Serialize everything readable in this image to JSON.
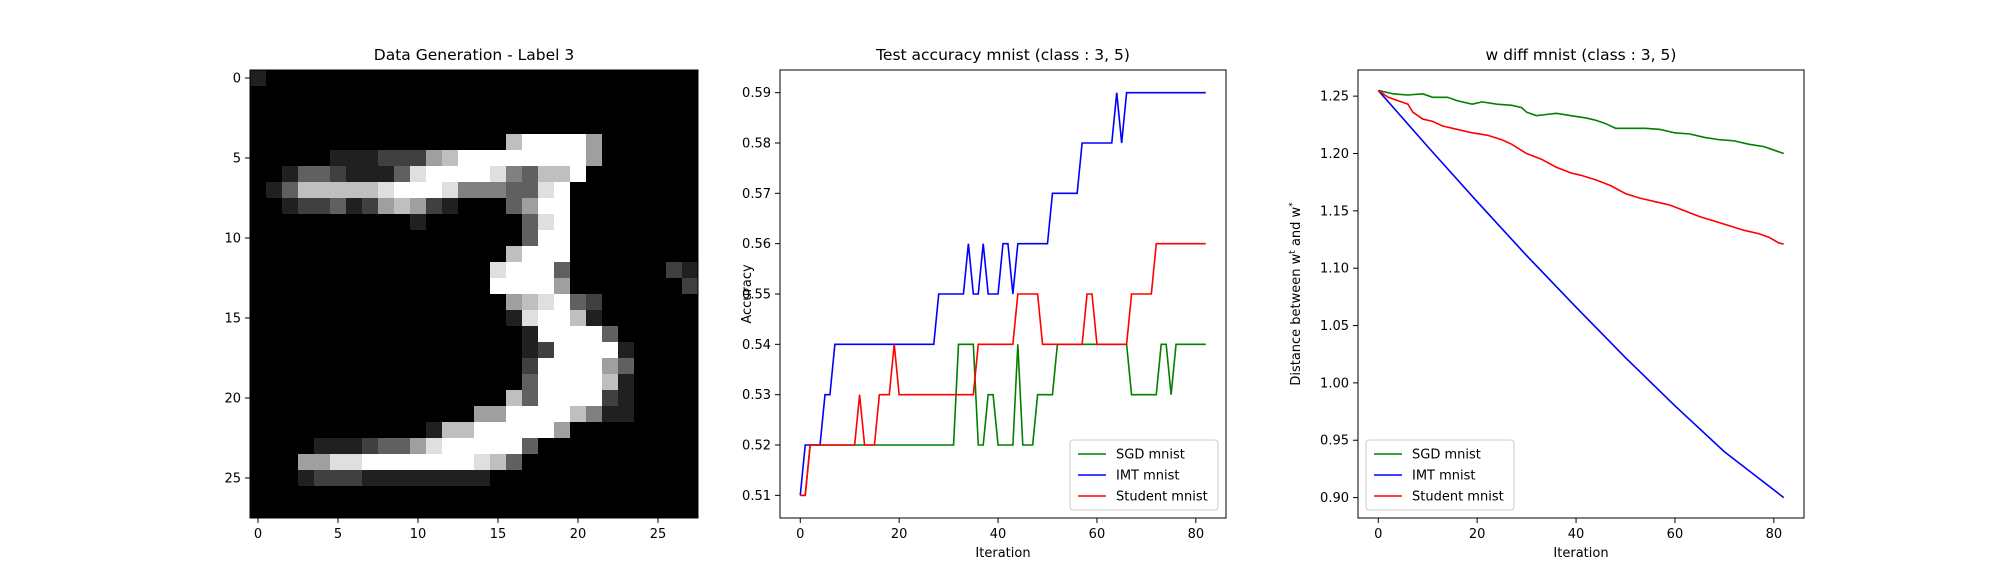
{
  "chart_data": [
    {
      "type": "heatmap",
      "title": "Data Generation - Label 3",
      "xlim": [
        -0.5,
        27.5
      ],
      "ylim": [
        27.5,
        -0.5
      ],
      "xticks": [
        0,
        5,
        10,
        15,
        20,
        25
      ],
      "yticks": [
        0,
        5,
        10,
        15,
        20,
        25
      ],
      "colormap": "gray",
      "rows": [
        "1000000000000000000000000000",
        "0000000000000000000000000000",
        "0000000000000000000000000000",
        "0000000000000000000000000000",
        "0000000000000000688885000000",
        "0000011122256888888885000000",
        "0013321113788887436680000000",
        "0136666678887444337800000000",
        "0012231256521000358800000000",
        "0000000000100000037800000000",
        "0000000000000000038800000000",
        "0000000000000000688800000000",
        "0000000000000007888300000021",
        "0000000000000008888500000002",
        "0000000000000000567832000000",
        "0000000000000000178861000000",
        "0000000000000000018888300000",
        "0000000000000000012888810000",
        "0000000000000000028888530000",
        "0000000000000000038888610000",
        "0000000000000000638888210000",
        "0000000000000055888864110000",
        "0000000000016688888500000000",
        "0000111233578888830000000000",
        "0005577888888876300000000000",
        "0001222111111110000000000000",
        "0000000000000000000000000000",
        "0000000000000000000000000000"
      ]
    },
    {
      "type": "line",
      "title": "Test accuracy mnist (class : 3, 5)",
      "xlabel": "Iteration",
      "ylabel": "Accuracy",
      "xlim": [
        -4.1,
        86.1
      ],
      "ylim": [
        0.5055,
        0.5945
      ],
      "xticks": [
        0,
        20,
        40,
        60,
        80
      ],
      "yticks": [
        0.51,
        0.52,
        0.53,
        0.54,
        0.55,
        0.56,
        0.57,
        0.58,
        0.59
      ],
      "legend": "lower-right",
      "series": [
        {
          "name": "SGD mnist",
          "color": "#008000",
          "points": [
            [
              0,
              0.51
            ],
            [
              1,
              0.51
            ],
            [
              2,
              0.52
            ],
            [
              31,
              0.52
            ],
            [
              32,
              0.54
            ],
            [
              35,
              0.54
            ],
            [
              36,
              0.52
            ],
            [
              37,
              0.52
            ],
            [
              38,
              0.53
            ],
            [
              39,
              0.53
            ],
            [
              40,
              0.52
            ],
            [
              43,
              0.52
            ],
            [
              44,
              0.54
            ],
            [
              45,
              0.52
            ],
            [
              47,
              0.52
            ],
            [
              48,
              0.53
            ],
            [
              51,
              0.53
            ],
            [
              52,
              0.54
            ],
            [
              66,
              0.54
            ],
            [
              67,
              0.53
            ],
            [
              72,
              0.53
            ],
            [
              73,
              0.54
            ],
            [
              74,
              0.54
            ],
            [
              75,
              0.53
            ],
            [
              76,
              0.54
            ],
            [
              82,
              0.54
            ]
          ]
        },
        {
          "name": "IMT mnist",
          "color": "#0000ff",
          "points": [
            [
              0,
              0.51
            ],
            [
              1,
              0.52
            ],
            [
              4,
              0.52
            ],
            [
              5,
              0.53
            ],
            [
              6,
              0.53
            ],
            [
              7,
              0.54
            ],
            [
              27,
              0.54
            ],
            [
              28,
              0.55
            ],
            [
              33,
              0.55
            ],
            [
              34,
              0.56
            ],
            [
              35,
              0.55
            ],
            [
              36,
              0.55
            ],
            [
              37,
              0.56
            ],
            [
              38,
              0.55
            ],
            [
              40,
              0.55
            ],
            [
              41,
              0.56
            ],
            [
              42,
              0.56
            ],
            [
              43,
              0.55
            ],
            [
              44,
              0.56
            ],
            [
              50,
              0.56
            ],
            [
              51,
              0.57
            ],
            [
              56,
              0.57
            ],
            [
              57,
              0.58
            ],
            [
              63,
              0.58
            ],
            [
              64,
              0.59
            ],
            [
              65,
              0.58
            ],
            [
              66,
              0.59
            ],
            [
              82,
              0.59
            ]
          ]
        },
        {
          "name": "Student mnist",
          "color": "#ff0000",
          "points": [
            [
              0,
              0.51
            ],
            [
              1,
              0.51
            ],
            [
              2,
              0.52
            ],
            [
              11,
              0.52
            ],
            [
              12,
              0.53
            ],
            [
              13,
              0.52
            ],
            [
              15,
              0.52
            ],
            [
              16,
              0.53
            ],
            [
              18,
              0.53
            ],
            [
              19,
              0.54
            ],
            [
              20,
              0.53
            ],
            [
              35,
              0.53
            ],
            [
              36,
              0.54
            ],
            [
              43,
              0.54
            ],
            [
              44,
              0.55
            ],
            [
              48,
              0.55
            ],
            [
              49,
              0.54
            ],
            [
              57,
              0.54
            ],
            [
              58,
              0.55
            ],
            [
              59,
              0.55
            ],
            [
              60,
              0.54
            ],
            [
              66,
              0.54
            ],
            [
              67,
              0.55
            ],
            [
              71,
              0.55
            ],
            [
              72,
              0.56
            ],
            [
              82,
              0.56
            ]
          ]
        }
      ]
    },
    {
      "type": "line",
      "title": "w diff mnist (class : 3, 5)",
      "xlabel": "Iteration",
      "ylabel": "Distance between w",
      "ylabel_sup1": "t",
      "ylabel_mid": " and w",
      "ylabel_sup2": "*",
      "xlim": [
        -4.1,
        86.1
      ],
      "ylim": [
        0.8822,
        1.2728
      ],
      "xticks": [
        0,
        20,
        40,
        60,
        80
      ],
      "yticks": [
        0.9,
        0.95,
        1.0,
        1.05,
        1.1,
        1.15,
        1.2,
        1.25
      ],
      "legend": "lower-left",
      "series": [
        {
          "name": "SGD mnist",
          "color": "#008000",
          "points": [
            [
              0,
              1.255
            ],
            [
              3,
              1.252
            ],
            [
              6,
              1.251
            ],
            [
              9,
              1.252
            ],
            [
              11,
              1.249
            ],
            [
              14,
              1.249
            ],
            [
              16,
              1.246
            ],
            [
              19,
              1.243
            ],
            [
              21,
              1.245
            ],
            [
              24,
              1.243
            ],
            [
              27,
              1.242
            ],
            [
              29,
              1.24
            ],
            [
              30,
              1.236
            ],
            [
              32,
              1.233
            ],
            [
              34,
              1.234
            ],
            [
              36,
              1.235
            ],
            [
              39,
              1.233
            ],
            [
              42,
              1.231
            ],
            [
              44,
              1.229
            ],
            [
              46,
              1.226
            ],
            [
              48,
              1.222
            ],
            [
              51,
              1.222
            ],
            [
              54,
              1.222
            ],
            [
              57,
              1.221
            ],
            [
              60,
              1.218
            ],
            [
              63,
              1.217
            ],
            [
              66,
              1.214
            ],
            [
              69,
              1.212
            ],
            [
              72,
              1.211
            ],
            [
              75,
              1.208
            ],
            [
              78,
              1.206
            ],
            [
              80,
              1.203
            ],
            [
              82,
              1.2
            ]
          ]
        },
        {
          "name": "IMT mnist",
          "color": "#0000ff",
          "points": [
            [
              0,
              1.255
            ],
            [
              10,
              1.206
            ],
            [
              20,
              1.158
            ],
            [
              30,
              1.111
            ],
            [
              40,
              1.066
            ],
            [
              50,
              1.022
            ],
            [
              60,
              0.98
            ],
            [
              70,
              0.94
            ],
            [
              82,
              0.9
            ]
          ]
        },
        {
          "name": "Student mnist",
          "color": "#ff0000",
          "points": [
            [
              0,
              1.255
            ],
            [
              2,
              1.249
            ],
            [
              4,
              1.246
            ],
            [
              6,
              1.243
            ],
            [
              7,
              1.236
            ],
            [
              9,
              1.23
            ],
            [
              11,
              1.228
            ],
            [
              13,
              1.224
            ],
            [
              16,
              1.221
            ],
            [
              19,
              1.218
            ],
            [
              22,
              1.216
            ],
            [
              25,
              1.212
            ],
            [
              27,
              1.208
            ],
            [
              30,
              1.2
            ],
            [
              33,
              1.195
            ],
            [
              36,
              1.188
            ],
            [
              39,
              1.183
            ],
            [
              41,
              1.181
            ],
            [
              44,
              1.177
            ],
            [
              47,
              1.172
            ],
            [
              50,
              1.165
            ],
            [
              53,
              1.161
            ],
            [
              56,
              1.158
            ],
            [
              59,
              1.155
            ],
            [
              62,
              1.15
            ],
            [
              65,
              1.145
            ],
            [
              68,
              1.141
            ],
            [
              71,
              1.137
            ],
            [
              74,
              1.133
            ],
            [
              77,
              1.13
            ],
            [
              79,
              1.127
            ],
            [
              81,
              1.122
            ],
            [
              82,
              1.121
            ]
          ]
        }
      ]
    }
  ]
}
